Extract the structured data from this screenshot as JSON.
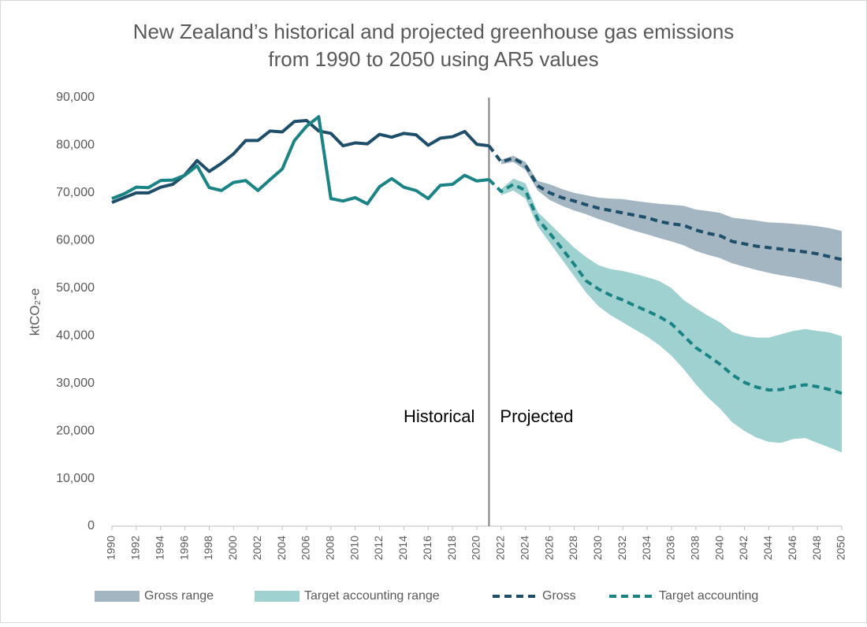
{
  "chart_data": {
    "type": "line",
    "title": [
      "New Zealand’s historical and projected greenhouse gas emissions",
      "from 1990 to 2050 using AR5 values"
    ],
    "ylabel": "ktCO₂-e",
    "x": [
      1990,
      1991,
      1992,
      1993,
      1994,
      1995,
      1996,
      1997,
      1998,
      1999,
      2000,
      2001,
      2002,
      2003,
      2004,
      2005,
      2006,
      2007,
      2008,
      2009,
      2010,
      2011,
      2012,
      2013,
      2014,
      2015,
      2016,
      2017,
      2018,
      2019,
      2020,
      2021,
      2022,
      2023,
      2024,
      2025,
      2026,
      2027,
      2028,
      2029,
      2030,
      2031,
      2032,
      2033,
      2034,
      2035,
      2036,
      2037,
      2038,
      2039,
      2040,
      2041,
      2042,
      2043,
      2044,
      2045,
      2046,
      2047,
      2048,
      2049,
      2050
    ],
    "xlim": [
      1990,
      2050
    ],
    "xticks": [
      1990,
      1992,
      1994,
      1996,
      1998,
      2000,
      2002,
      2004,
      2006,
      2008,
      2010,
      2012,
      2014,
      2016,
      2018,
      2020,
      2022,
      2024,
      2026,
      2028,
      2030,
      2032,
      2034,
      2036,
      2038,
      2040,
      2042,
      2044,
      2046,
      2048,
      2050
    ],
    "ylim": [
      0,
      90000
    ],
    "yticks": [
      0,
      {
        "value": 10000,
        "label": "10,000"
      },
      {
        "value": 20000,
        "label": "20,000"
      },
      {
        "value": 30000,
        "label": "30,000"
      },
      {
        "value": 40000,
        "label": "40,000"
      },
      {
        "value": 50000,
        "label": "50,000"
      },
      {
        "value": 60000,
        "label": "60,000"
      },
      {
        "value": 70000,
        "label": "70,000"
      },
      {
        "value": 80000,
        "label": "80,000"
      },
      {
        "value": 90000,
        "label": "90,000"
      }
    ],
    "projection_start": 2021,
    "annotations": [
      "Historical",
      "Projected"
    ],
    "ranges": [
      {
        "name": "Gross range",
        "color": "#a3b6c2",
        "x": [
          2022,
          2023,
          2024,
          2025,
          2026,
          2027,
          2028,
          2029,
          2030,
          2031,
          2032,
          2033,
          2034,
          2035,
          2036,
          2037,
          2038,
          2039,
          2040,
          2041,
          2042,
          2043,
          2044,
          2045,
          2046,
          2047,
          2048,
          2049,
          2050
        ],
        "upper": [
          77000,
          77800,
          76500,
          72500,
          71800,
          70800,
          70000,
          69500,
          69000,
          68800,
          68700,
          68300,
          68000,
          67700,
          67500,
          67300,
          66500,
          66200,
          65800,
          64800,
          64500,
          64200,
          63800,
          63700,
          63500,
          63300,
          63000,
          62600,
          62000
        ],
        "lower": [
          76000,
          76500,
          74800,
          70500,
          68500,
          67300,
          66300,
          65500,
          64500,
          63700,
          62800,
          62000,
          61300,
          60500,
          59800,
          59000,
          57800,
          57000,
          56300,
          55200,
          54500,
          53800,
          53200,
          52700,
          52300,
          51800,
          51300,
          50700,
          50000
        ]
      },
      {
        "name": "Target accounting range",
        "color": "#a0d1d1",
        "x": [
          2022,
          2023,
          2024,
          2025,
          2026,
          2027,
          2028,
          2029,
          2030,
          2031,
          2032,
          2033,
          2034,
          2035,
          2036,
          2037,
          2038,
          2039,
          2040,
          2041,
          2042,
          2043,
          2044,
          2045,
          2046,
          2047,
          2048,
          2049,
          2050
        ],
        "upper": [
          70800,
          73000,
          72000,
          66000,
          63500,
          61000,
          58500,
          56500,
          54800,
          54000,
          53600,
          53000,
          52300,
          51500,
          50000,
          47500,
          45800,
          44200,
          42800,
          40800,
          40000,
          39600,
          39600,
          40300,
          41000,
          41400,
          41000,
          40700,
          39900
        ],
        "lower": [
          69500,
          70500,
          68800,
          63000,
          59500,
          56000,
          52500,
          49000,
          46200,
          44300,
          42800,
          41300,
          39800,
          38000,
          35800,
          33000,
          29800,
          27000,
          24700,
          21800,
          20000,
          18600,
          17700,
          17500,
          18300,
          18500,
          17500,
          16500,
          15500
        ]
      }
    ],
    "series": [
      {
        "name": "Gross",
        "color": "#1f4e6b",
        "values": [
          68000,
          69000,
          70000,
          70000,
          71200,
          71800,
          73800,
          76800,
          74500,
          76200,
          78200,
          81000,
          81000,
          83000,
          82800,
          85000,
          85200,
          83000,
          82500,
          79900,
          80500,
          80300,
          82300,
          81700,
          82500,
          82200,
          80000,
          81500,
          81800,
          82900,
          80200,
          79900,
          76500,
          77300,
          75800,
          71500,
          70000,
          69000,
          68300,
          67500,
          66800,
          66300,
          65800,
          65300,
          64800,
          64000,
          63500,
          63200,
          62200,
          61500,
          61000,
          59800,
          59300,
          58800,
          58500,
          58200,
          57900,
          57600,
          57200,
          56600,
          56000
        ]
      },
      {
        "name": "Target accounting",
        "color": "#1a8485",
        "values": [
          68800,
          69800,
          71200,
          71100,
          72600,
          72700,
          73700,
          75700,
          71100,
          70500,
          72200,
          72600,
          70500,
          72800,
          75000,
          81000,
          84000,
          86000,
          68800,
          68300,
          69000,
          67700,
          71300,
          73000,
          71200,
          70500,
          68800,
          71600,
          71800,
          73700,
          72500,
          72800,
          70300,
          71800,
          70500,
          64500,
          61500,
          58300,
          55000,
          51500,
          49800,
          48500,
          47500,
          46300,
          45200,
          44000,
          42500,
          40000,
          37500,
          35800,
          34000,
          31800,
          30200,
          29200,
          28600,
          28700,
          29300,
          29700,
          29300,
          28700,
          27900
        ]
      }
    ]
  }
}
